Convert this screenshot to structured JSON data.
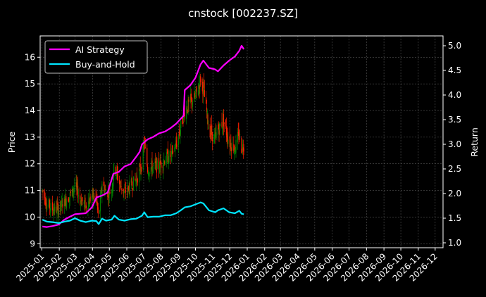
{
  "chart_data": {
    "type": "line",
    "title": "cnstock [002237.SZ]",
    "ylabel": "Price",
    "y2label": "Return",
    "grid": true,
    "legend_position": "top-left",
    "x_ticks": [
      "2025-01",
      "2025-02",
      "2025-03",
      "2025-04",
      "2025-05",
      "2025-06",
      "2025-07",
      "2025-08",
      "2025-09",
      "2025-10",
      "2025-11",
      "2025-12",
      "2026-01",
      "2026-02",
      "2026-03",
      "2026-04",
      "2026-05",
      "2026-06",
      "2026-07",
      "2026-08",
      "2026-09",
      "2026-10",
      "2026-11",
      "2026-12"
    ],
    "xlim": [
      "2024-12-29",
      "2026-12-15"
    ],
    "ylim": [
      8.85,
      16.8
    ],
    "y_ticks": [
      9,
      10,
      11,
      12,
      13,
      14,
      15,
      16
    ],
    "y2lim": [
      0.9,
      5.2
    ],
    "y2_ticks": [
      "1.0",
      "1.5",
      "2.0",
      "2.5",
      "3.0",
      "3.5",
      "4.0",
      "4.5",
      "5.0"
    ],
    "colors": {
      "background": "#000000",
      "up": "#008000",
      "down": "#ff2000",
      "strategy": "#ff00ff",
      "buyhold": "#00e5ff",
      "grid": "#555555"
    },
    "series": [
      {
        "name": "AI Strategy",
        "axis": "right",
        "points": [
          [
            "2025-01-02",
            1.33
          ],
          [
            "2025-01-10",
            1.32
          ],
          [
            "2025-01-20",
            1.34
          ],
          [
            "2025-01-31",
            1.37
          ],
          [
            "2025-02-10",
            1.47
          ],
          [
            "2025-02-20",
            1.53
          ],
          [
            "2025-03-01",
            1.58
          ],
          [
            "2025-03-10",
            1.59
          ],
          [
            "2025-03-20",
            1.6
          ],
          [
            "2025-03-31",
            1.72
          ],
          [
            "2025-04-08",
            1.92
          ],
          [
            "2025-04-18",
            1.96
          ],
          [
            "2025-04-28",
            2.02
          ],
          [
            "2025-05-08",
            2.4
          ],
          [
            "2025-05-18",
            2.44
          ],
          [
            "2025-05-28",
            2.55
          ],
          [
            "2025-06-08",
            2.6
          ],
          [
            "2025-06-18",
            2.75
          ],
          [
            "2025-06-24",
            2.85
          ],
          [
            "2025-06-28",
            3.0
          ],
          [
            "2025-07-08",
            3.1
          ],
          [
            "2025-07-18",
            3.15
          ],
          [
            "2025-07-28",
            3.22
          ],
          [
            "2025-08-08",
            3.26
          ],
          [
            "2025-08-18",
            3.33
          ],
          [
            "2025-08-28",
            3.42
          ],
          [
            "2025-09-05",
            3.52
          ],
          [
            "2025-09-10",
            3.58
          ],
          [
            "2025-09-12",
            4.1
          ],
          [
            "2025-09-22",
            4.2
          ],
          [
            "2025-10-01",
            4.35
          ],
          [
            "2025-10-10",
            4.62
          ],
          [
            "2025-10-15",
            4.7
          ],
          [
            "2025-10-25",
            4.55
          ],
          [
            "2025-11-05",
            4.52
          ],
          [
            "2025-11-10",
            4.48
          ],
          [
            "2025-11-20",
            4.6
          ],
          [
            "2025-11-30",
            4.7
          ],
          [
            "2025-12-10",
            4.78
          ],
          [
            "2025-12-18",
            4.9
          ],
          [
            "2025-12-22",
            5.0
          ],
          [
            "2025-12-26",
            4.93
          ]
        ]
      },
      {
        "name": "Buy-and-Hold",
        "axis": "right",
        "points": [
          [
            "2025-01-02",
            1.47
          ],
          [
            "2025-01-10",
            1.43
          ],
          [
            "2025-01-20",
            1.42
          ],
          [
            "2025-01-31",
            1.4
          ],
          [
            "2025-02-10",
            1.43
          ],
          [
            "2025-02-20",
            1.45
          ],
          [
            "2025-03-01",
            1.5
          ],
          [
            "2025-03-10",
            1.45
          ],
          [
            "2025-03-20",
            1.42
          ],
          [
            "2025-03-31",
            1.45
          ],
          [
            "2025-04-08",
            1.44
          ],
          [
            "2025-04-12",
            1.38
          ],
          [
            "2025-04-18",
            1.49
          ],
          [
            "2025-04-25",
            1.45
          ],
          [
            "2025-05-05",
            1.47
          ],
          [
            "2025-05-10",
            1.55
          ],
          [
            "2025-05-18",
            1.47
          ],
          [
            "2025-05-28",
            1.45
          ],
          [
            "2025-06-08",
            1.48
          ],
          [
            "2025-06-18",
            1.49
          ],
          [
            "2025-06-28",
            1.55
          ],
          [
            "2025-07-02",
            1.62
          ],
          [
            "2025-07-08",
            1.52
          ],
          [
            "2025-07-18",
            1.53
          ],
          [
            "2025-07-28",
            1.53
          ],
          [
            "2025-08-08",
            1.56
          ],
          [
            "2025-08-18",
            1.56
          ],
          [
            "2025-08-28",
            1.6
          ],
          [
            "2025-09-05",
            1.66
          ],
          [
            "2025-09-12",
            1.72
          ],
          [
            "2025-09-22",
            1.74
          ],
          [
            "2025-10-01",
            1.78
          ],
          [
            "2025-10-10",
            1.82
          ],
          [
            "2025-10-15",
            1.8
          ],
          [
            "2025-10-25",
            1.66
          ],
          [
            "2025-11-05",
            1.62
          ],
          [
            "2025-11-10",
            1.66
          ],
          [
            "2025-11-20",
            1.7
          ],
          [
            "2025-11-30",
            1.62
          ],
          [
            "2025-12-10",
            1.6
          ],
          [
            "2025-12-18",
            1.65
          ],
          [
            "2025-12-22",
            1.59
          ],
          [
            "2025-12-26",
            1.58
          ]
        ]
      }
    ],
    "price_path": [
      [
        "2025-01-02",
        11.0
      ],
      [
        "2025-01-10",
        10.5
      ],
      [
        "2025-01-20",
        10.3
      ],
      [
        "2025-01-31",
        10.3
      ],
      [
        "2025-02-10",
        10.6
      ],
      [
        "2025-02-20",
        10.8
      ],
      [
        "2025-03-01",
        11.2
      ],
      [
        "2025-03-10",
        10.7
      ],
      [
        "2025-03-20",
        10.4
      ],
      [
        "2025-03-31",
        10.8
      ],
      [
        "2025-04-08",
        10.7
      ],
      [
        "2025-04-12",
        9.8
      ],
      [
        "2025-04-18",
        11.3
      ],
      [
        "2025-04-25",
        10.9
      ],
      [
        "2025-05-05",
        11.0
      ],
      [
        "2025-05-10",
        12.0
      ],
      [
        "2025-05-18",
        11.3
      ],
      [
        "2025-05-28",
        10.9
      ],
      [
        "2025-06-08",
        11.2
      ],
      [
        "2025-06-18",
        11.4
      ],
      [
        "2025-06-28",
        12.0
      ],
      [
        "2025-07-02",
        12.8
      ],
      [
        "2025-07-08",
        11.8
      ],
      [
        "2025-07-18",
        11.9
      ],
      [
        "2025-07-28",
        11.9
      ],
      [
        "2025-08-08",
        12.2
      ],
      [
        "2025-08-18",
        12.3
      ],
      [
        "2025-08-28",
        12.7
      ],
      [
        "2025-09-05",
        13.4
      ],
      [
        "2025-09-12",
        14.0
      ],
      [
        "2025-09-22",
        14.3
      ],
      [
        "2025-10-01",
        14.5
      ],
      [
        "2025-10-10",
        15.2
      ],
      [
        "2025-10-15",
        14.8
      ],
      [
        "2025-10-25",
        13.3
      ],
      [
        "2025-11-05",
        12.9
      ],
      [
        "2025-11-10",
        13.3
      ],
      [
        "2025-11-20",
        13.6
      ],
      [
        "2025-11-30",
        12.8
      ],
      [
        "2025-12-10",
        12.6
      ],
      [
        "2025-12-18",
        13.1
      ],
      [
        "2025-12-22",
        12.6
      ],
      [
        "2025-12-26",
        12.7
      ]
    ]
  }
}
